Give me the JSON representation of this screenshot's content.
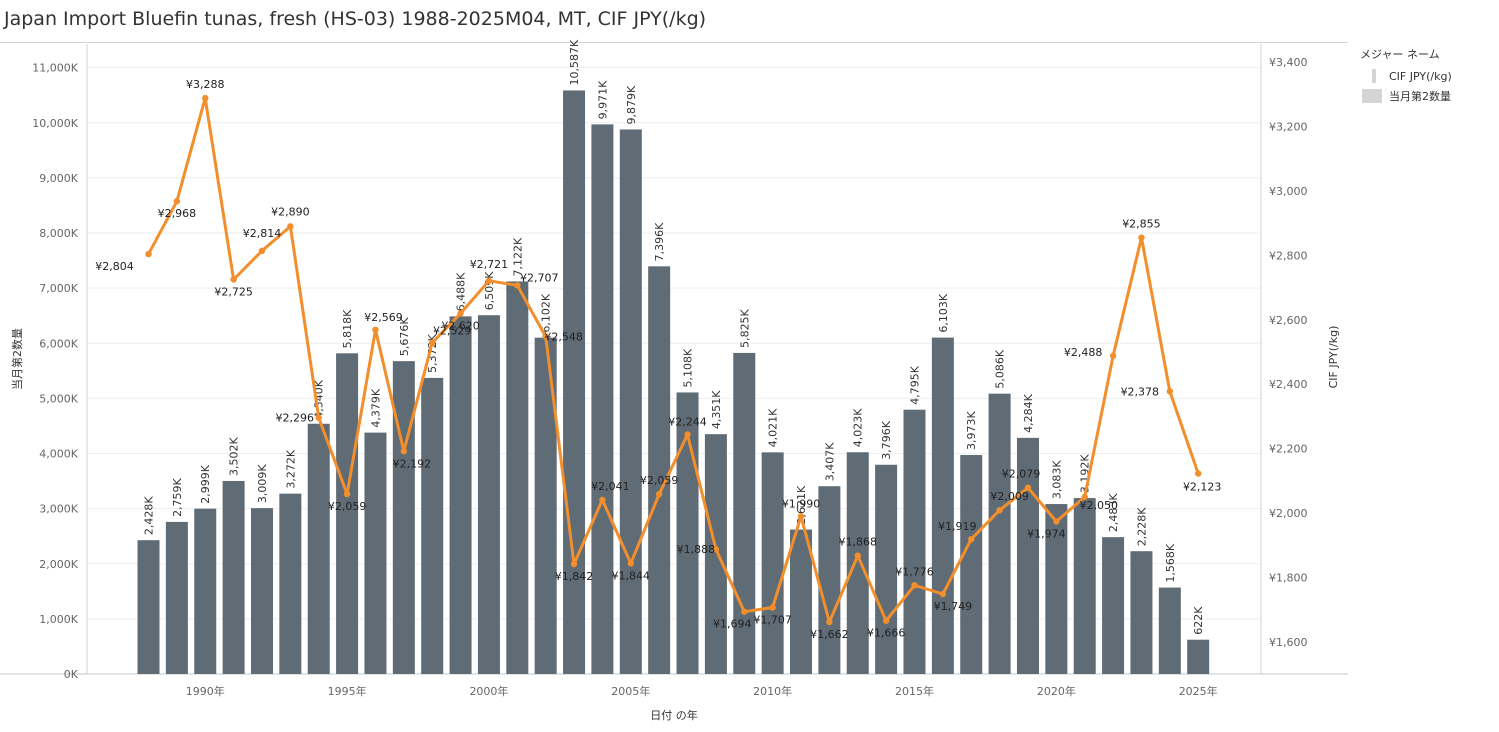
{
  "title": "Japan Import Bluefin tunas, fresh (HS-03) 1988-2025M04, MT, CIF JPY(/kg)",
  "legend": {
    "title": "メジャー ネーム",
    "items": [
      {
        "label": "CIF JPY(/kg)",
        "kind": "line"
      },
      {
        "label": "当月第2数量",
        "kind": "bar"
      }
    ]
  },
  "colors": {
    "bar": "#5f6b75",
    "line": "#f28e2b",
    "bar_label_inside": "#e8e8e8"
  },
  "chart_data": {
    "type": "bar+line",
    "xlabel": "日付 の年",
    "ylabel_left": "当月第2数量",
    "ylabel_right": "CIF JPY(/kg)",
    "ylim_left": [
      0,
      11000
    ],
    "ylim_right": [
      1600,
      3400
    ],
    "years": [
      1988,
      1989,
      1990,
      1991,
      1992,
      1993,
      1994,
      1995,
      1996,
      1997,
      1998,
      1999,
      2000,
      2001,
      2002,
      2003,
      2004,
      2005,
      2006,
      2007,
      2008,
      2009,
      2010,
      2011,
      2012,
      2013,
      2014,
      2015,
      2016,
      2017,
      2018,
      2019,
      2020,
      2021,
      2022,
      2023,
      2024,
      2025
    ],
    "x_ticks": [
      {
        "year": 1990,
        "label": "1990年"
      },
      {
        "year": 1995,
        "label": "1995年"
      },
      {
        "year": 2000,
        "label": "2000年"
      },
      {
        "year": 2005,
        "label": "2005年"
      },
      {
        "year": 2010,
        "label": "2010年"
      },
      {
        "year": 2015,
        "label": "2015年"
      },
      {
        "year": 2020,
        "label": "2020年"
      },
      {
        "year": 2025,
        "label": "2025年"
      }
    ],
    "left_ticks": [
      {
        "v": 0,
        "label": "0K"
      },
      {
        "v": 1000,
        "label": "1,000K"
      },
      {
        "v": 2000,
        "label": "2,000K"
      },
      {
        "v": 3000,
        "label": "3,000K"
      },
      {
        "v": 4000,
        "label": "4,000K"
      },
      {
        "v": 5000,
        "label": "5,000K"
      },
      {
        "v": 6000,
        "label": "6,000K"
      },
      {
        "v": 7000,
        "label": "7,000K"
      },
      {
        "v": 8000,
        "label": "8,000K"
      },
      {
        "v": 9000,
        "label": "9,000K"
      },
      {
        "v": 10000,
        "label": "10,000K"
      },
      {
        "v": 11000,
        "label": "11,000K"
      }
    ],
    "right_ticks": [
      {
        "v": 1600,
        "label": "¥1,600"
      },
      {
        "v": 1800,
        "label": "¥1,800"
      },
      {
        "v": 2000,
        "label": "¥2,000"
      },
      {
        "v": 2200,
        "label": "¥2,200"
      },
      {
        "v": 2400,
        "label": "¥2,400"
      },
      {
        "v": 2600,
        "label": "¥2,600"
      },
      {
        "v": 2800,
        "label": "¥2,800"
      },
      {
        "v": 3000,
        "label": "¥3,000"
      },
      {
        "v": 3200,
        "label": "¥3,200"
      },
      {
        "v": 3400,
        "label": "¥3,400"
      }
    ],
    "bars": {
      "name": "当月第2数量",
      "values": [
        2428,
        2759,
        2999,
        3502,
        3009,
        3272,
        4540,
        5818,
        4379,
        5676,
        5372,
        6488,
        6509,
        7122,
        6102,
        10587,
        9971,
        9879,
        7396,
        5108,
        4351,
        5825,
        4021,
        2621,
        3407,
        4023,
        3796,
        4795,
        6103,
        3973,
        5086,
        4284,
        3083,
        3192,
        2483,
        2228,
        1568,
        622
      ],
      "labels": [
        "2,428K",
        "2,759K",
        "2,999K",
        "3,502K",
        "3,009K",
        "3,272K",
        "4,540K",
        "5,818K",
        "4,379K",
        "5,676K",
        "5,372K",
        "6,488K",
        "6,509K",
        "7,122K",
        "6,102K",
        "10,587K",
        "9,971K",
        "9,879K",
        "7,396K",
        "5,108K",
        "4,351K",
        "5,825K",
        "4,021K",
        "2,621K",
        "3,407K",
        "4,023K",
        "3,796K",
        "4,795K",
        "6,103K",
        "3,973K",
        "5,086K",
        "4,284K",
        "3,083K",
        "3,192K",
        "2,483K",
        "2,228K",
        "1,568K",
        "622K"
      ]
    },
    "line": {
      "name": "CIF JPY(/kg)",
      "values": [
        2804,
        2968,
        3288,
        2725,
        2814,
        2890,
        2296,
        2059,
        2569,
        2192,
        2529,
        2620,
        2721,
        2707,
        2548,
        1842,
        2041,
        1844,
        2059,
        2244,
        1888,
        1694,
        1707,
        1990,
        1662,
        1868,
        1666,
        1776,
        1749,
        1919,
        2009,
        2079,
        1974,
        2050,
        2488,
        2855,
        2378,
        2123
      ],
      "labels": [
        "¥2,804",
        "¥2,968",
        "¥3,288",
        "¥2,725",
        "¥2,814",
        "¥2,890",
        "¥2,296",
        "¥2,059",
        "¥2,569",
        "¥2,192",
        "¥2,529",
        "¥2,620",
        "¥2,721",
        "¥2,707",
        "¥2,548",
        "¥1,842",
        "¥2,041",
        "¥1,844",
        "¥2,059",
        "¥2,244",
        "¥1,888",
        "¥1,694",
        "¥1,707",
        "¥1,990",
        "¥1,662",
        "¥1,868",
        "¥1,666",
        "¥1,776",
        "¥1,749",
        "¥1,919",
        "¥2,009",
        "¥2,079",
        "¥1,974",
        "¥2,050",
        "¥2,488",
        "¥2,855",
        "¥2,378",
        "¥2,123"
      ]
    }
  }
}
